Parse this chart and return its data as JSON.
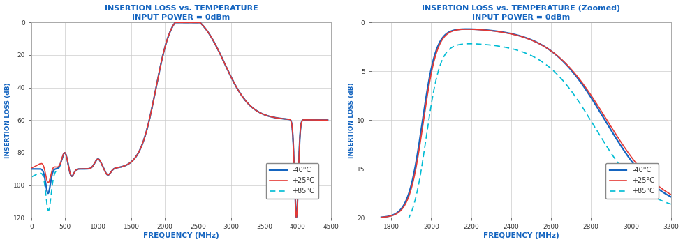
{
  "left": {
    "title": "INSERTION LOSS vs. TEMPERATURE",
    "subtitle": "INPUT POWER = 0dBm",
    "xlabel": "FREQUENCY (MHz)",
    "ylabel": "INSERTION LOSS (dB)",
    "xlim": [
      0,
      4500
    ],
    "ylim": [
      120,
      0
    ],
    "xticks": [
      0,
      500,
      1000,
      1500,
      2000,
      2500,
      3000,
      3500,
      4000,
      4500
    ],
    "yticks": [
      0,
      20,
      40,
      60,
      80,
      100,
      120
    ]
  },
  "right": {
    "title": "INSERTION LOSS vs. TEMPERATURE (Zoomed)",
    "subtitle": "INPUT POWER = 0dBm",
    "xlabel": "FREQUENCY (MHz)",
    "ylabel": "INSERTION LOSS (dB)",
    "xlim": [
      1700,
      3200
    ],
    "ylim": [
      20,
      0
    ],
    "xticks": [
      1800,
      2000,
      2200,
      2400,
      2600,
      2800,
      3000,
      3200
    ],
    "yticks": [
      0,
      5,
      10,
      15,
      20
    ]
  },
  "colors": {
    "blue": "#1565C0",
    "red": "#E53935",
    "cyan": "#00BCD4",
    "title": "#1565C0",
    "axis_label": "#1565C0",
    "grid": "#cccccc"
  },
  "legend": [
    {
      "label": "-40°C"
    },
    {
      "label": "+25°C"
    },
    {
      "label": "+85°C"
    }
  ]
}
